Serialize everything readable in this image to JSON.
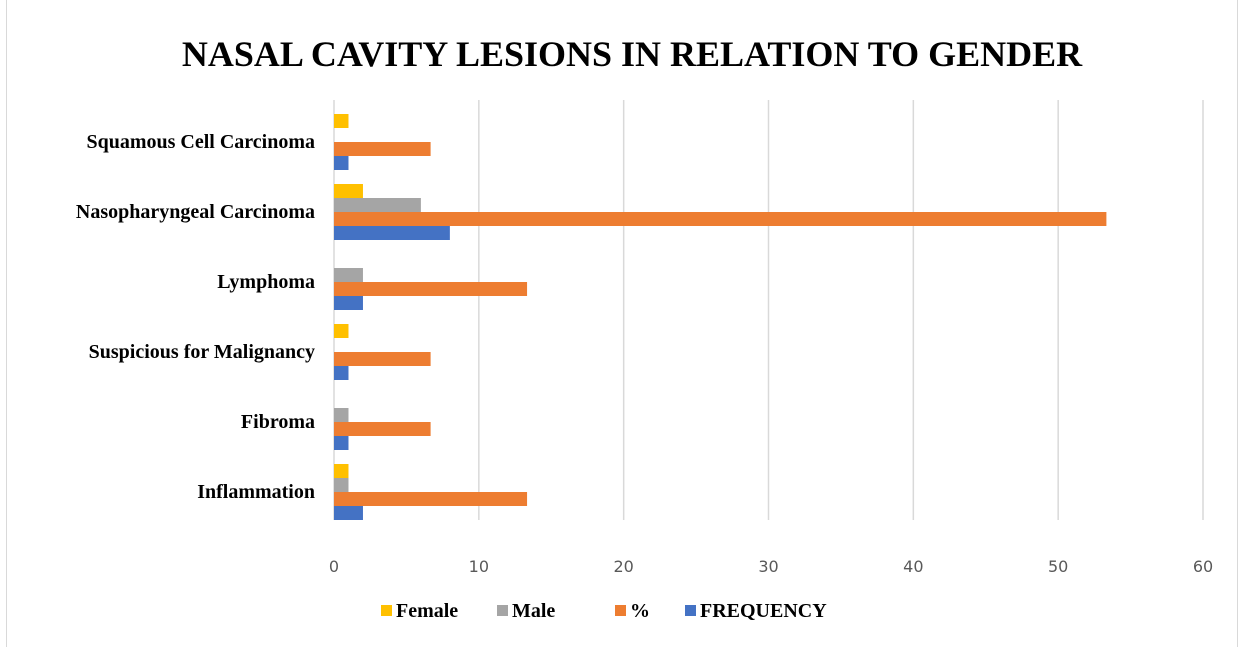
{
  "chart_data": {
    "type": "bar",
    "orientation": "horizontal",
    "title": "NASAL CAVITY LESIONS  IN RELATION TO GENDER",
    "categories": [
      "Squamous Cell Carcinoma",
      "Nasopharyngeal Carcinoma",
      "Lymphoma",
      "Suspicious for Malignancy",
      "Fibroma",
      "Inflammation"
    ],
    "series": [
      {
        "name": "Female",
        "color": "#ffc000",
        "values": [
          1,
          2,
          0,
          1,
          0,
          1
        ]
      },
      {
        "name": "Male",
        "color": "#a5a5a5",
        "values": [
          0,
          6,
          2,
          0,
          1,
          1
        ]
      },
      {
        "name": "%",
        "color": "#ed7d31",
        "values": [
          6.67,
          53.33,
          13.33,
          6.67,
          6.67,
          13.33
        ]
      },
      {
        "name": "FREQUENCY",
        "color": "#4472c4",
        "values": [
          1,
          8,
          2,
          1,
          1,
          2
        ]
      }
    ],
    "xlim": [
      0,
      60
    ],
    "xticks": [
      "0",
      "10",
      "20",
      "30",
      "40",
      "50",
      "60"
    ],
    "grid": true,
    "legend_position": "bottom"
  }
}
